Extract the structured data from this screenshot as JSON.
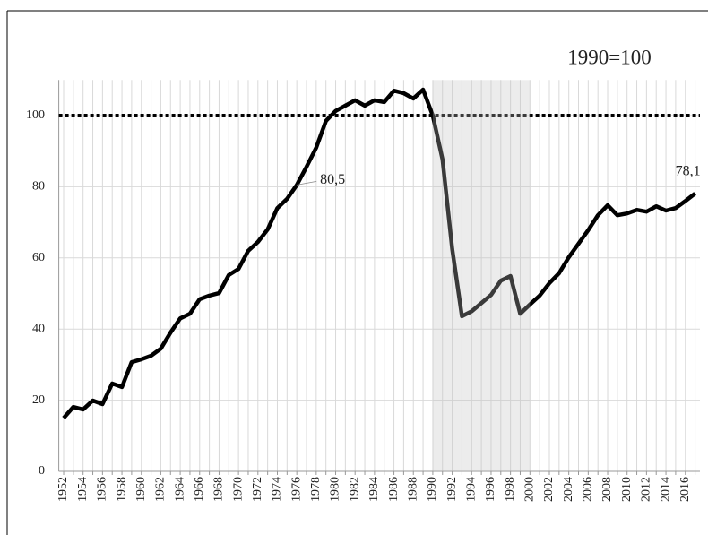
{
  "chart_data": {
    "type": "line",
    "subtitle": "1990=100",
    "categories": [
      "1952",
      null,
      "1954",
      null,
      "1956",
      null,
      "1958",
      null,
      "1960",
      null,
      "1962",
      null,
      "1964",
      null,
      "1966",
      null,
      "1968",
      null,
      "1970",
      null,
      "1972",
      null,
      "1974",
      null,
      "1976",
      null,
      "1978",
      null,
      "1980",
      null,
      "1982",
      null,
      "1984",
      null,
      "1986",
      null,
      "1988",
      null,
      "1990",
      null,
      "1992",
      null,
      "1994",
      null,
      "1996",
      null,
      "1998",
      null,
      "2000",
      null,
      "2002",
      null,
      "2004",
      null,
      "2006",
      null,
      "2008",
      null,
      "2010",
      null,
      "2012",
      null,
      "2014",
      null,
      "2016",
      null
    ],
    "series": [
      {
        "color": "#000000",
        "values": [
          15,
          18.1,
          17.4,
          19.9,
          18.9,
          24.7,
          23.7,
          30.7,
          31.5,
          32.5,
          34.5,
          39,
          43,
          44.3,
          48.4,
          49.4,
          50.1,
          55.2,
          56.9,
          62,
          64.5,
          68,
          74,
          76.6,
          80.5,
          85.6,
          91,
          98.5,
          101.3,
          102.8,
          104.3,
          102.8,
          104.3,
          103.8,
          107,
          106.3,
          104.8,
          107.3,
          100,
          87.7,
          62.5,
          43.6,
          45,
          47.3,
          49.6,
          53.6,
          54.9,
          44.3,
          46.9,
          49.4,
          52.9,
          55.7,
          60.2,
          64,
          67.8,
          72,
          74.8,
          72,
          72.5,
          73.5,
          73,
          74.5,
          73.3,
          74,
          76,
          78.1
        ],
        "value_labels": [
          null,
          null,
          null,
          null,
          null,
          null,
          null,
          null,
          null,
          null,
          null,
          null,
          null,
          null,
          null,
          null,
          null,
          null,
          null,
          null,
          null,
          null,
          null,
          null,
          "80,5",
          null,
          null,
          null,
          null,
          null,
          null,
          null,
          null,
          null,
          null,
          null,
          null,
          null,
          null,
          null,
          null,
          null,
          null,
          null,
          null,
          null,
          null,
          null,
          null,
          null,
          null,
          null,
          null,
          null,
          null,
          null,
          null,
          null,
          null,
          null,
          null,
          null,
          null,
          null,
          null,
          "78,1"
        ]
      }
    ],
    "ylim": [
      0,
      110
    ],
    "yticks": [
      0,
      20,
      40,
      60,
      80,
      100
    ],
    "grid": true,
    "reference_line": 100,
    "highlight": [
      "1990",
      "2000"
    ]
  }
}
